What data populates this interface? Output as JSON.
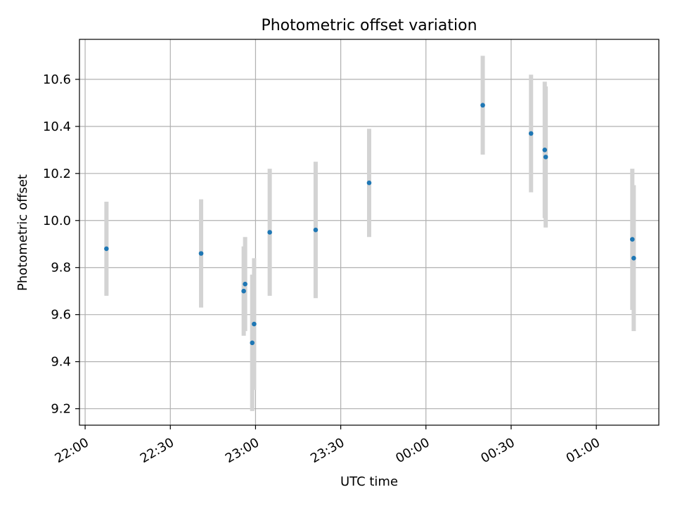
{
  "chart_data": {
    "type": "scatter",
    "title": "Photometric offset variation",
    "xlabel": "UTC time",
    "ylabel": "Photometric offset",
    "x_tick_labels": [
      "22:00",
      "22:30",
      "23:00",
      "23:30",
      "00:00",
      "00:30",
      "01:00"
    ],
    "y_tick_labels": [
      "9.2",
      "9.4",
      "9.6",
      "9.8",
      "10.0",
      "10.2",
      "10.4",
      "10.6"
    ],
    "y_ticks": [
      9.2,
      9.4,
      9.6,
      9.8,
      10.0,
      10.2,
      10.4,
      10.6
    ],
    "xlim": [
      "21:58",
      "01:22"
    ],
    "ylim": [
      9.13,
      10.77
    ],
    "grid": true,
    "points": [
      {
        "x": "22:07:30",
        "y": 9.88,
        "err": 0.2
      },
      {
        "x": "22:40:50",
        "y": 9.86,
        "err": 0.23
      },
      {
        "x": "22:55:50",
        "y": 9.7,
        "err": 0.19
      },
      {
        "x": "22:56:20",
        "y": 9.73,
        "err": 0.2
      },
      {
        "x": "22:58:50",
        "y": 9.48,
        "err": 0.29
      },
      {
        "x": "22:59:30",
        "y": 9.56,
        "err": 0.28
      },
      {
        "x": "23:05:00",
        "y": 9.95,
        "err": 0.27
      },
      {
        "x": "23:21:10",
        "y": 9.96,
        "err": 0.29
      },
      {
        "x": "23:40:00",
        "y": 10.16,
        "err": 0.23
      },
      {
        "x": "00:20:00",
        "y": 10.49,
        "err": 0.21
      },
      {
        "x": "00:37:00",
        "y": 10.37,
        "err": 0.25
      },
      {
        "x": "00:41:50",
        "y": 10.3,
        "err": 0.29
      },
      {
        "x": "00:42:10",
        "y": 10.27,
        "err": 0.3
      },
      {
        "x": "01:12:40",
        "y": 9.92,
        "err": 0.3
      },
      {
        "x": "01:13:10",
        "y": 9.84,
        "err": 0.31
      }
    ],
    "colors": {
      "point": "#1f77b4",
      "errorbar": "#d3d3d3",
      "grid": "#b0b0b0",
      "axes": "#000000"
    }
  }
}
